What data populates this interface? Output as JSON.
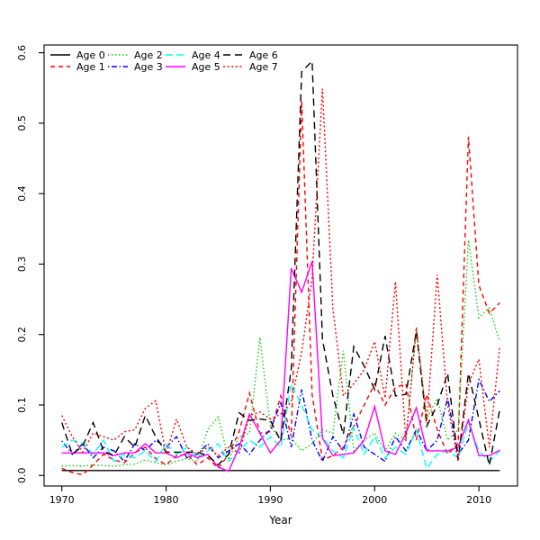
{
  "figure": {
    "background": "#ffffff",
    "axis_color": "#000000",
    "text_color": "#000000"
  },
  "chart_data": {
    "type": "line",
    "title": "",
    "xlabel": "Year",
    "ylabel": "",
    "grid": false,
    "legend_position": "top-left",
    "legend_columns": 4,
    "xlim": [
      1968.3,
      2013.7
    ],
    "ylim": [
      -0.015,
      0.611
    ],
    "x_ticks": [
      1970,
      1980,
      1990,
      2000,
      2010
    ],
    "y_ticks": [
      0.0,
      0.1,
      0.2,
      0.3,
      0.4,
      0.5,
      0.6
    ],
    "x": [
      1970,
      1971,
      1972,
      1973,
      1974,
      1975,
      1976,
      1977,
      1978,
      1979,
      1980,
      1981,
      1982,
      1983,
      1984,
      1985,
      1986,
      1987,
      1988,
      1989,
      1990,
      1991,
      1992,
      1993,
      1994,
      1995,
      1996,
      1997,
      1998,
      1999,
      2000,
      2001,
      2002,
      2003,
      2004,
      2005,
      2006,
      2007,
      2008,
      2009,
      2010,
      2011,
      2012
    ],
    "series": [
      {
        "name": "Age 0",
        "color": "#000000",
        "style": "solid",
        "values": [
          0.007,
          0.007,
          0.007,
          0.007,
          0.007,
          0.007,
          0.007,
          0.007,
          0.007,
          0.007,
          0.007,
          0.007,
          0.007,
          0.007,
          0.007,
          0.007,
          0.007,
          0.007,
          0.007,
          0.007,
          0.007,
          0.007,
          0.007,
          0.007,
          0.007,
          0.007,
          0.007,
          0.007,
          0.007,
          0.007,
          0.007,
          0.007,
          0.007,
          0.007,
          0.007,
          0.007,
          0.007,
          0.007,
          0.007,
          0.007,
          0.007,
          0.007,
          0.007
        ]
      },
      {
        "name": "Age 1",
        "color": "#FF0000",
        "style": "dashed",
        "values": [
          0.01,
          0.004,
          0.001,
          0.015,
          0.03,
          0.022,
          0.018,
          0.032,
          0.04,
          0.024,
          0.015,
          0.028,
          0.03,
          0.015,
          0.025,
          0.01,
          0.03,
          0.062,
          0.117,
          0.06,
          0.062,
          0.113,
          0.055,
          0.532,
          0.115,
          0.022,
          0.028,
          0.04,
          0.07,
          0.1,
          0.13,
          0.1,
          0.125,
          0.13,
          0.05,
          0.115,
          0.065,
          0.03,
          0.045,
          0.481,
          0.27,
          0.23,
          0.245
        ]
      },
      {
        "name": "Age 2",
        "color": "#00CD00",
        "style": "dotted",
        "values": [
          0.013,
          0.014,
          0.013,
          0.015,
          0.014,
          0.013,
          0.015,
          0.016,
          0.022,
          0.018,
          0.015,
          0.02,
          0.024,
          0.02,
          0.065,
          0.083,
          0.022,
          0.055,
          0.06,
          0.196,
          0.07,
          0.05,
          0.053,
          0.035,
          0.045,
          0.065,
          0.06,
          0.177,
          0.035,
          0.05,
          0.06,
          0.035,
          0.06,
          0.05,
          0.21,
          0.081,
          0.109,
          0.05,
          0.065,
          0.334,
          0.224,
          0.238,
          0.19
        ]
      },
      {
        "name": "Age 3",
        "color": "#0000FF",
        "style": "dotdash",
        "values": [
          0.049,
          0.03,
          0.045,
          0.025,
          0.04,
          0.035,
          0.02,
          0.045,
          0.035,
          0.05,
          0.04,
          0.055,
          0.025,
          0.03,
          0.045,
          0.025,
          0.035,
          0.045,
          0.03,
          0.05,
          0.065,
          0.103,
          0.04,
          0.122,
          0.05,
          0.02,
          0.055,
          0.035,
          0.087,
          0.04,
          0.03,
          0.02,
          0.055,
          0.035,
          0.065,
          0.035,
          0.05,
          0.11,
          0.03,
          0.05,
          0.136,
          0.105,
          0.12
        ]
      },
      {
        "name": "Age 4",
        "color": "#00FFFF",
        "style": "longdash",
        "values": [
          0.04,
          0.05,
          0.046,
          0.03,
          0.05,
          0.02,
          0.03,
          0.025,
          0.035,
          0.02,
          0.045,
          0.03,
          0.04,
          0.025,
          0.035,
          0.045,
          0.02,
          0.035,
          0.05,
          0.04,
          0.055,
          0.04,
          0.13,
          0.1,
          0.065,
          0.055,
          0.035,
          0.025,
          0.068,
          0.03,
          0.055,
          0.025,
          0.04,
          0.03,
          0.065,
          0.01,
          0.03,
          0.035,
          0.025,
          0.075,
          0.035,
          0.02,
          0.035
        ]
      },
      {
        "name": "Age 5",
        "color": "#FF00FF",
        "style": "solid",
        "values": [
          0.032,
          0.032,
          0.032,
          0.032,
          0.032,
          0.028,
          0.032,
          0.032,
          0.045,
          0.032,
          0.032,
          0.025,
          0.032,
          0.025,
          0.03,
          0.012,
          0.006,
          0.04,
          0.087,
          0.06,
          0.032,
          0.05,
          0.294,
          0.26,
          0.304,
          0.053,
          0.028,
          0.03,
          0.032,
          0.05,
          0.098,
          0.035,
          0.03,
          0.06,
          0.096,
          0.035,
          0.035,
          0.035,
          0.04,
          0.079,
          0.028,
          0.028,
          0.036
        ]
      },
      {
        "name": "Age 6",
        "color": "#000000",
        "style": "heavydash",
        "values": [
          0.075,
          0.03,
          0.042,
          0.075,
          0.035,
          0.028,
          0.055,
          0.04,
          0.085,
          0.055,
          0.033,
          0.033,
          0.033,
          0.033,
          0.028,
          0.015,
          0.03,
          0.089,
          0.078,
          0.08,
          0.078,
          0.049,
          0.15,
          0.573,
          0.588,
          0.193,
          0.113,
          0.058,
          0.183,
          0.155,
          0.122,
          0.198,
          0.113,
          0.115,
          0.205,
          0.07,
          0.1,
          0.145,
          0.022,
          0.145,
          0.08,
          0.014,
          0.094
        ]
      },
      {
        "name": "Age 7",
        "color": "#FF0000",
        "style": "heavydot",
        "values": [
          0.085,
          0.055,
          0.033,
          0.06,
          0.055,
          0.05,
          0.062,
          0.065,
          0.095,
          0.106,
          0.03,
          0.08,
          0.04,
          0.03,
          0.04,
          0.028,
          0.04,
          0.032,
          0.085,
          0.09,
          0.08,
          0.087,
          0.105,
          0.175,
          0.28,
          0.549,
          0.237,
          0.113,
          0.13,
          0.15,
          0.19,
          0.11,
          0.275,
          0.049,
          0.21,
          0.074,
          0.285,
          0.1,
          0.02,
          0.13,
          0.165,
          0.04,
          0.183
        ]
      }
    ]
  }
}
